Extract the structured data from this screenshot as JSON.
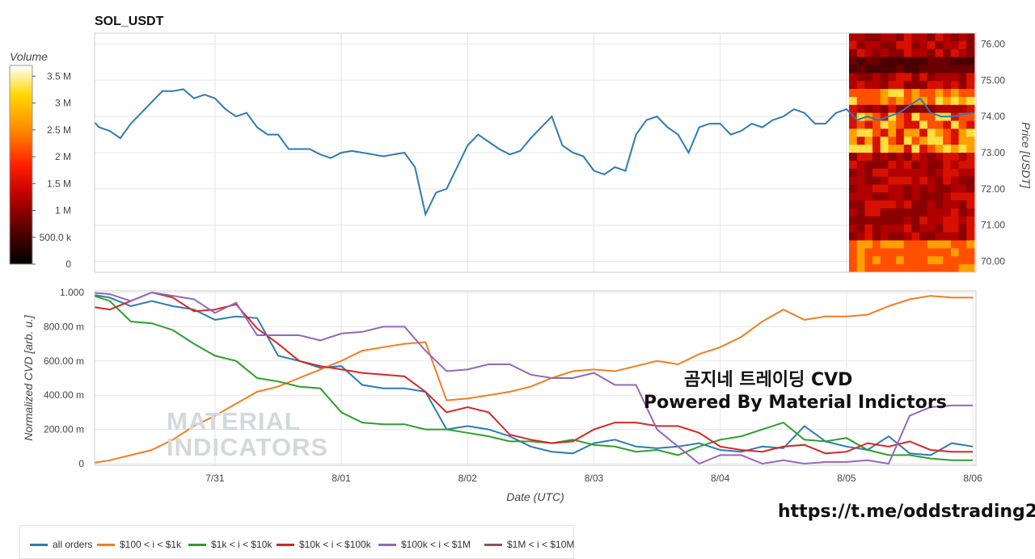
{
  "chart_data": [
    {
      "type": "line",
      "title": "SOL_USDT",
      "ylabel": "Price [USDT]",
      "ylim": [
        69.7,
        76.3
      ],
      "y_ticks": [
        "70.00",
        "71.00",
        "72.00",
        "73.00",
        "74.00",
        "75.00",
        "76.00"
      ],
      "x_ticks": [
        "7/31",
        "8/01",
        "8/02",
        "8/03",
        "8/04",
        "8/05",
        "8/06"
      ],
      "colorbar": {
        "label": "Volume",
        "ticks": [
          "0",
          "500.0 k",
          "1 M",
          "1.5 M",
          "2 M",
          "2.5 M",
          "3 M",
          "3.5 M"
        ],
        "max": 3700000
      },
      "series": [
        {
          "color": "#2e7bb3",
          "x": [
            "2023-07-30T00:00",
            "2023-07-30T02:00",
            "2023-07-30T04:00",
            "2023-07-30T06:00",
            "2023-07-30T08:00",
            "2023-07-30T10:00",
            "2023-07-30T12:00",
            "2023-07-30T14:00",
            "2023-07-30T16:00",
            "2023-07-30T18:00",
            "2023-07-30T20:00",
            "2023-07-30T22:00",
            "2023-07-31T00:00",
            "2023-07-31T02:00",
            "2023-07-31T04:00",
            "2023-07-31T06:00",
            "2023-07-31T08:00",
            "2023-07-31T10:00",
            "2023-07-31T12:00",
            "2023-07-31T14:00",
            "2023-07-31T16:00",
            "2023-07-31T18:00",
            "2023-07-31T20:00",
            "2023-07-31T22:00",
            "2023-08-01T00:00",
            "2023-08-01T02:00",
            "2023-08-01T04:00",
            "2023-08-01T06:00",
            "2023-08-01T08:00",
            "2023-08-01T10:00",
            "2023-08-01T12:00",
            "2023-08-01T14:00",
            "2023-08-01T16:00",
            "2023-08-01T18:00",
            "2023-08-01T20:00",
            "2023-08-01T22:00",
            "2023-08-02T00:00",
            "2023-08-02T02:00",
            "2023-08-02T04:00",
            "2023-08-02T06:00",
            "2023-08-02T08:00",
            "2023-08-02T10:00",
            "2023-08-02T12:00",
            "2023-08-02T14:00",
            "2023-08-02T16:00",
            "2023-08-02T18:00",
            "2023-08-02T20:00",
            "2023-08-02T22:00",
            "2023-08-03T00:00",
            "2023-08-03T02:00",
            "2023-08-03T04:00",
            "2023-08-03T06:00",
            "2023-08-03T08:00",
            "2023-08-03T10:00",
            "2023-08-03T12:00",
            "2023-08-03T14:00",
            "2023-08-03T16:00",
            "2023-08-03T18:00",
            "2023-08-03T20:00",
            "2023-08-03T22:00",
            "2023-08-04T00:00",
            "2023-08-04T02:00",
            "2023-08-04T04:00",
            "2023-08-04T06:00",
            "2023-08-04T08:00",
            "2023-08-04T10:00",
            "2023-08-04T12:00",
            "2023-08-04T14:00",
            "2023-08-04T16:00",
            "2023-08-04T18:00",
            "2023-08-04T20:00",
            "2023-08-04T22:00",
            "2023-08-05T00:00",
            "2023-08-05T02:00",
            "2023-08-05T04:00",
            "2023-08-05T06:00",
            "2023-08-05T08:00",
            "2023-08-05T10:00",
            "2023-08-05T12:00",
            "2023-08-05T14:00",
            "2023-08-05T16:00",
            "2023-08-05T18:00",
            "2023-08-05T20:00",
            "2023-08-05T22:00",
            "2023-08-06T00:00"
          ],
          "y": [
            74.0,
            73.7,
            73.6,
            73.4,
            73.8,
            74.1,
            74.4,
            74.7,
            74.7,
            74.75,
            74.5,
            74.6,
            74.5,
            74.2,
            74.0,
            74.1,
            73.7,
            73.5,
            73.5,
            73.1,
            73.1,
            73.1,
            72.95,
            72.85,
            73.0,
            73.05,
            73.0,
            72.95,
            72.9,
            72.95,
            73.0,
            72.6,
            71.3,
            71.9,
            72.0,
            72.6,
            73.2,
            73.5,
            73.3,
            73.1,
            72.95,
            73.05,
            73.4,
            73.7,
            74.0,
            73.2,
            73.0,
            72.9,
            72.5,
            72.4,
            72.6,
            72.5,
            73.5,
            73.9,
            74.0,
            73.7,
            73.5,
            73.0,
            73.7,
            73.8,
            73.8,
            73.5,
            73.6,
            73.8,
            73.7,
            73.9,
            74.0,
            74.2,
            74.1,
            73.8,
            73.8,
            74.1,
            74.2,
            73.9,
            74.0,
            73.9,
            74.0,
            74.1,
            74.3,
            74.5,
            74.1,
            74.0,
            74.0,
            74.05,
            74.1
          ]
        }
      ]
    },
    {
      "type": "line",
      "xlabel": "Date (UTC)",
      "ylabel": "Normalized CVD [arb. u.]",
      "ylim": [
        0,
        1.0
      ],
      "y_ticks": [
        "0",
        "200.00 m",
        "400.00 m",
        "600.00 m",
        "800.00 m",
        "1.000"
      ],
      "x_ticks": [
        "7/31",
        "8/01",
        "8/02",
        "8/03",
        "8/04",
        "8/05",
        "8/06"
      ],
      "series": [
        {
          "name": "all orders",
          "color": "#2e7bb3",
          "x": [
            0,
            4,
            8,
            12,
            16,
            20,
            24,
            28,
            32,
            36,
            40,
            44,
            48,
            52,
            56,
            60,
            64,
            68,
            72,
            76,
            80,
            84,
            88,
            92,
            96,
            100,
            104,
            108,
            112,
            116,
            120,
            124,
            128,
            132,
            136,
            140,
            144,
            148,
            152,
            156,
            160,
            164,
            168
          ],
          "y": [
            0.99,
            0.97,
            0.92,
            0.95,
            0.92,
            0.9,
            0.84,
            0.86,
            0.85,
            0.63,
            0.6,
            0.56,
            0.57,
            0.46,
            0.44,
            0.44,
            0.42,
            0.2,
            0.22,
            0.2,
            0.16,
            0.1,
            0.07,
            0.06,
            0.12,
            0.14,
            0.1,
            0.09,
            0.1,
            0.12,
            0.08,
            0.07,
            0.1,
            0.09,
            0.22,
            0.13,
            0.1,
            0.08,
            0.16,
            0.06,
            0.05,
            0.12,
            0.1
          ]
        },
        {
          "name": "$100 < i < $1k",
          "color": "#f07f1e",
          "x": [
            0,
            4,
            8,
            12,
            16,
            20,
            24,
            28,
            32,
            36,
            40,
            44,
            48,
            52,
            56,
            60,
            64,
            68,
            72,
            76,
            80,
            84,
            88,
            92,
            96,
            100,
            104,
            108,
            112,
            116,
            120,
            124,
            128,
            132,
            136,
            140,
            144,
            148,
            152,
            156,
            160,
            164,
            168
          ],
          "y": [
            0.0,
            0.02,
            0.05,
            0.08,
            0.14,
            0.22,
            0.28,
            0.35,
            0.42,
            0.45,
            0.5,
            0.55,
            0.6,
            0.66,
            0.68,
            0.7,
            0.71,
            0.37,
            0.38,
            0.4,
            0.42,
            0.45,
            0.5,
            0.54,
            0.55,
            0.54,
            0.57,
            0.6,
            0.58,
            0.64,
            0.68,
            0.74,
            0.83,
            0.9,
            0.84,
            0.86,
            0.86,
            0.87,
            0.92,
            0.96,
            0.98,
            0.97,
            0.97
          ]
        },
        {
          "name": "$1k < i < $10k",
          "color": "#2ca02c",
          "x": [
            0,
            4,
            8,
            12,
            16,
            20,
            24,
            28,
            32,
            36,
            40,
            44,
            48,
            52,
            56,
            60,
            64,
            68,
            72,
            76,
            80,
            84,
            88,
            92,
            96,
            100,
            104,
            108,
            112,
            116,
            120,
            124,
            128,
            132,
            136,
            140,
            144,
            148,
            152,
            156,
            160,
            164,
            168
          ],
          "y": [
            0.99,
            0.95,
            0.83,
            0.82,
            0.78,
            0.7,
            0.63,
            0.6,
            0.5,
            0.48,
            0.45,
            0.44,
            0.3,
            0.24,
            0.23,
            0.23,
            0.2,
            0.2,
            0.18,
            0.16,
            0.13,
            0.13,
            0.12,
            0.14,
            0.11,
            0.1,
            0.07,
            0.08,
            0.05,
            0.1,
            0.14,
            0.16,
            0.2,
            0.24,
            0.14,
            0.13,
            0.15,
            0.08,
            0.05,
            0.05,
            0.03,
            0.02,
            0.02
          ]
        },
        {
          "name": "$10k < i < $100k",
          "color": "#d62728",
          "x": [
            0,
            4,
            8,
            12,
            16,
            20,
            24,
            28,
            32,
            36,
            40,
            44,
            48,
            52,
            56,
            60,
            64,
            68,
            72,
            76,
            80,
            84,
            88,
            92,
            96,
            100,
            104,
            108,
            112,
            116,
            120,
            124,
            128,
            132,
            136,
            140,
            144,
            148,
            152,
            156,
            160,
            164,
            168
          ],
          "y": [
            0.92,
            0.9,
            0.95,
            1.0,
            0.97,
            0.89,
            0.9,
            0.93,
            0.79,
            0.7,
            0.6,
            0.57,
            0.55,
            0.53,
            0.52,
            0.51,
            0.42,
            0.3,
            0.33,
            0.3,
            0.17,
            0.14,
            0.12,
            0.13,
            0.2,
            0.24,
            0.24,
            0.22,
            0.22,
            0.18,
            0.1,
            0.08,
            0.07,
            0.1,
            0.11,
            0.06,
            0.07,
            0.12,
            0.1,
            0.13,
            0.08,
            0.07,
            0.07
          ]
        },
        {
          "name": "$100k < i < $1M",
          "color": "#9467bd",
          "x": [
            0,
            4,
            8,
            12,
            16,
            20,
            24,
            28,
            32,
            36,
            40,
            44,
            48,
            52,
            56,
            60,
            64,
            68,
            72,
            76,
            80,
            84,
            88,
            92,
            96,
            100,
            104,
            108,
            112,
            116,
            120,
            124,
            128,
            132,
            136,
            140,
            144,
            148,
            152,
            156,
            160,
            164,
            168
          ],
          "y": [
            1.0,
            0.99,
            0.95,
            1.0,
            0.98,
            0.96,
            0.88,
            0.94,
            0.75,
            0.75,
            0.75,
            0.72,
            0.76,
            0.77,
            0.8,
            0.8,
            0.66,
            0.54,
            0.55,
            0.58,
            0.58,
            0.52,
            0.5,
            0.5,
            0.53,
            0.46,
            0.46,
            0.2,
            0.1,
            0.0,
            0.05,
            0.05,
            0.0,
            0.02,
            0.0,
            0.01,
            0.01,
            0.02,
            0.0,
            0.28,
            0.33,
            0.34,
            0.34
          ]
        },
        {
          "name": "$1M < i < $10M",
          "color": "#8c564b",
          "x": [],
          "y": []
        }
      ]
    }
  ],
  "overlay": {
    "line1": "곰지네 트레이딩 CVD",
    "line2": "Powered By Material Indictors",
    "link": "https://t.me/oddstrading2",
    "watermark1": "MATERIAL",
    "watermark2": "INDICATORS"
  },
  "heatmap_colors": [
    "#8b0000",
    "#b00000",
    "#d81000",
    "#6a0000",
    "#ff5000",
    "#ffa000",
    "#ffe040",
    "#4a0000"
  ]
}
